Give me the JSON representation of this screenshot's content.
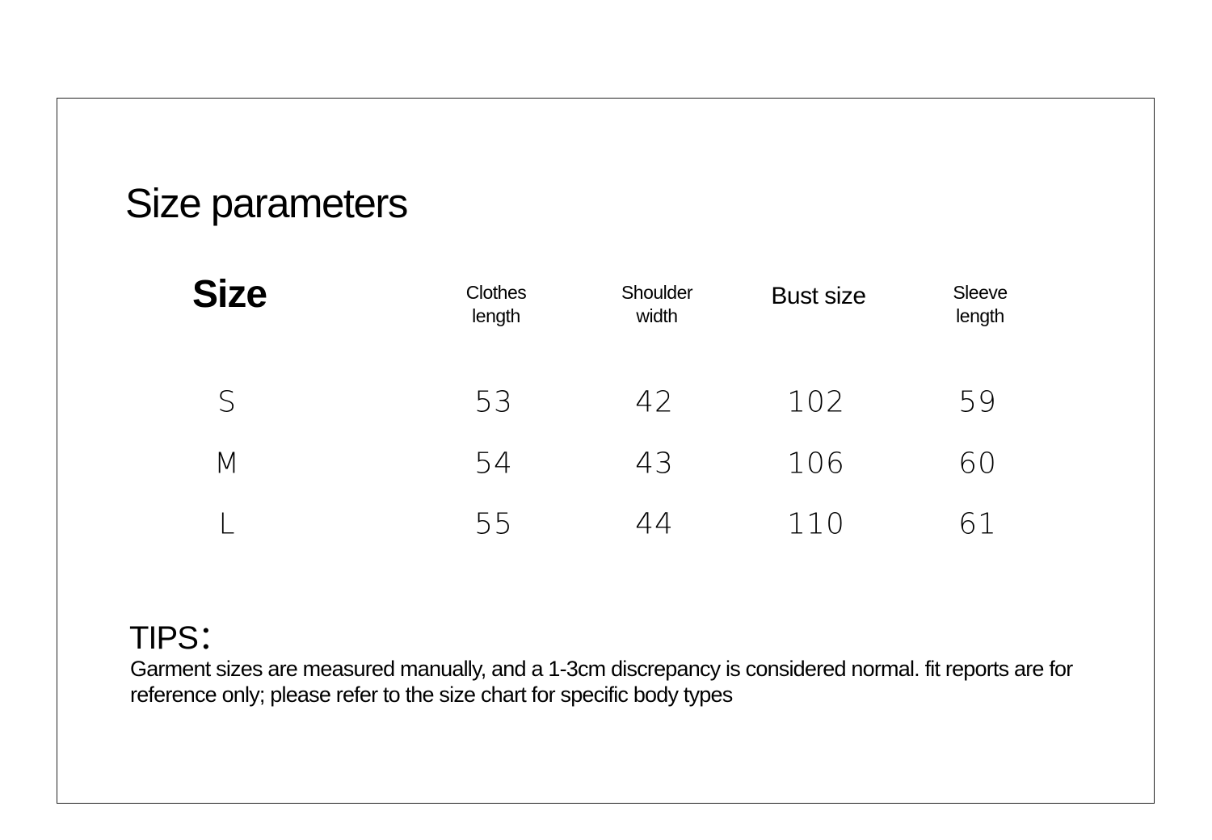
{
  "title": "Size parameters",
  "table": {
    "headers": [
      "Size",
      "Clothes\nlength",
      "Shoulder\nwidth",
      "Bust size",
      "Sleeve\nlength"
    ],
    "rows": [
      [
        "S",
        "53",
        "42",
        "102",
        "59"
      ],
      [
        "M",
        "54",
        "43",
        "106",
        "60"
      ],
      [
        "L",
        "55",
        "44",
        "110",
        "61"
      ]
    ]
  },
  "tips": {
    "label": "TIPS：",
    "text": "Garment sizes are measured manually, and a 1-3cm discrepancy is considered normal. fit reports are for reference only; please refer to the size chart for specific body types"
  }
}
